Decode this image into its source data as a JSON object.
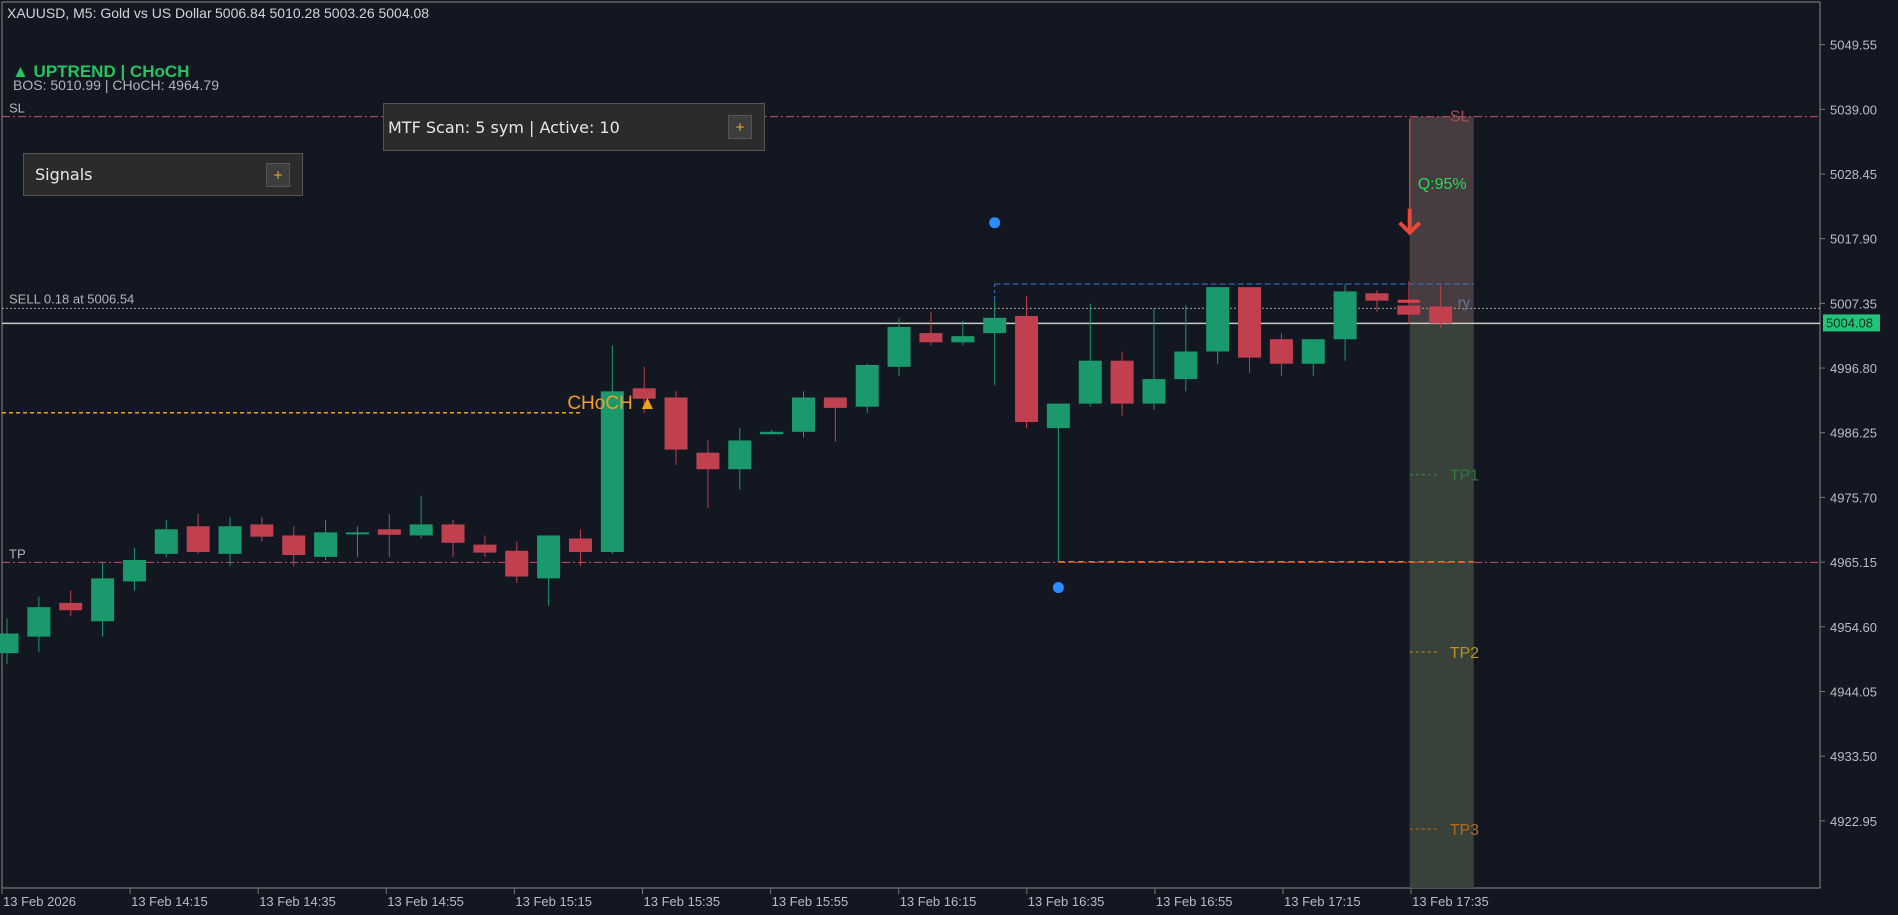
{
  "header": {
    "symbol_line": "XAUUSD, M5:  Gold vs US Dollar",
    "ohlc": "5006.84 5010.28 5003.26 5004.08"
  },
  "status": {
    "trend": "▲ UPTREND | CHoCH",
    "levels": "BOS: 5010.99  |  CHoCH: 4964.79"
  },
  "panels": {
    "mtf": {
      "label": "MTF Scan: 5 sym | Active: 10",
      "button": "+"
    },
    "signals": {
      "label": "Signals",
      "button": "+"
    }
  },
  "line_labels": {
    "sl_left": "SL",
    "tp_left": "TP",
    "sell": "SELL 0.18 at 5006.54",
    "sl_zone": "SL",
    "tp1": "TP1",
    "tp2": "TP2",
    "tp3": "TP3",
    "entry_partial": "ry",
    "quality": "Q:95%",
    "choch_marker": "CHoCH ▲"
  },
  "colors": {
    "background": "#131722",
    "bull": "#1a9a6c",
    "bear": "#c0404f",
    "sl_line": "#d0506a",
    "tp_line": "#d0506a",
    "choch": "#f0a020",
    "current_price_tag": "#22c47a",
    "swing_dot": "#2a8cff",
    "uptrend_text": "#22c55e",
    "quality_text": "#22dd55"
  },
  "current_price": "5004.08",
  "chart_data": {
    "type": "candlestick",
    "ylim": [
      4912.0,
      5056.5
    ],
    "y_ticks": [
      "5049.55",
      "5039.00",
      "5028.45",
      "5017.90",
      "5007.35",
      "4996.80",
      "4986.25",
      "4975.70",
      "4965.15",
      "4954.60",
      "4944.05",
      "4933.50",
      "4922.95"
    ],
    "x_ticks": [
      "13 Feb 2026",
      "13 Feb 14:15",
      "13 Feb 14:35",
      "13 Feb 14:55",
      "13 Feb 15:15",
      "13 Feb 15:35",
      "13 Feb 15:55",
      "13 Feb 16:15",
      "13 Feb 16:35",
      "13 Feb 16:55",
      "13 Feb 17:15",
      "13 Feb 17:35"
    ],
    "levels": {
      "sl": 5037.8,
      "tp": 4965.1,
      "sell_entry": 5006.54,
      "current": 5004.08,
      "choch": 4989.5,
      "tp1": 4979.4,
      "tp2": 4950.5,
      "tp3": 4921.6
    },
    "candles": [
      {
        "o": 4950.3,
        "h": 4956.0,
        "l": 4948.5,
        "c": 4953.5
      },
      {
        "o": 4953.0,
        "h": 4959.5,
        "l": 4950.5,
        "c": 4957.8
      },
      {
        "o": 4958.5,
        "h": 4960.5,
        "l": 4956.3,
        "c": 4957.3
      },
      {
        "o": 4955.5,
        "h": 4965.0,
        "l": 4953.0,
        "c": 4962.5
      },
      {
        "o": 4962.0,
        "h": 4967.5,
        "l": 4960.5,
        "c": 4965.5
      },
      {
        "o": 4966.5,
        "h": 4972.0,
        "l": 4966.0,
        "c": 4970.5
      },
      {
        "o": 4971.0,
        "h": 4973.0,
        "l": 4966.5,
        "c": 4966.8
      },
      {
        "o": 4966.5,
        "h": 4972.5,
        "l": 4964.5,
        "c": 4971.0
      },
      {
        "o": 4971.3,
        "h": 4972.5,
        "l": 4968.5,
        "c": 4969.3
      },
      {
        "o": 4969.5,
        "h": 4971.0,
        "l": 4964.5,
        "c": 4966.3
      },
      {
        "o": 4966.0,
        "h": 4972.0,
        "l": 4965.5,
        "c": 4970.0
      },
      {
        "o": 4969.7,
        "h": 4971.0,
        "l": 4966.0,
        "c": 4970.0
      },
      {
        "o": 4970.5,
        "h": 4973.0,
        "l": 4966.0,
        "c": 4969.6
      },
      {
        "o": 4969.5,
        "h": 4976.0,
        "l": 4969.0,
        "c": 4971.3
      },
      {
        "o": 4971.3,
        "h": 4972.0,
        "l": 4966.0,
        "c": 4968.3
      },
      {
        "o": 4968.0,
        "h": 4969.5,
        "l": 4966.0,
        "c": 4966.7
      },
      {
        "o": 4967.0,
        "h": 4968.5,
        "l": 4961.8,
        "c": 4962.8
      },
      {
        "o": 4962.5,
        "h": 4969.0,
        "l": 4958.0,
        "c": 4969.5
      },
      {
        "o": 4969.0,
        "h": 4970.5,
        "l": 4964.5,
        "c": 4966.8
      },
      {
        "o": 4966.8,
        "h": 5000.5,
        "l": 4966.5,
        "c": 4993.0
      },
      {
        "o": 4993.5,
        "h": 4997.0,
        "l": 4989.5,
        "c": 4991.8
      },
      {
        "o": 4992.0,
        "h": 4993.0,
        "l": 4981.0,
        "c": 4983.5
      },
      {
        "o": 4983.0,
        "h": 4985.0,
        "l": 4974.0,
        "c": 4980.3
      },
      {
        "o": 4980.3,
        "h": 4987.0,
        "l": 4977.0,
        "c": 4985.0
      },
      {
        "o": 4986.0,
        "h": 4986.7,
        "l": 4986.0,
        "c": 4986.4
      },
      {
        "o": 4986.4,
        "h": 4993.0,
        "l": 4985.5,
        "c": 4992.0
      },
      {
        "o": 4992.0,
        "h": 4992.0,
        "l": 4984.8,
        "c": 4990.3
      },
      {
        "o": 4990.5,
        "h": 4997.5,
        "l": 4989.5,
        "c": 4997.3
      },
      {
        "o": 4997.0,
        "h": 5005.0,
        "l": 4995.5,
        "c": 5003.5
      },
      {
        "o": 5002.5,
        "h": 5006.0,
        "l": 5000.5,
        "c": 5001.0
      },
      {
        "o": 5001.0,
        "h": 5004.5,
        "l": 5000.5,
        "c": 5002.0
      },
      {
        "o": 5002.5,
        "h": 5008.0,
        "l": 4994.0,
        "c": 5005.0
      },
      {
        "o": 5005.3,
        "h": 5008.5,
        "l": 4987.0,
        "c": 4988.0
      },
      {
        "o": 4987.0,
        "h": 4990.5,
        "l": 4965.2,
        "c": 4991.0
      },
      {
        "o": 4991.0,
        "h": 5007.3,
        "l": 4990.5,
        "c": 4998.0
      },
      {
        "o": 4998.0,
        "h": 4999.5,
        "l": 4989.0,
        "c": 4991.0
      },
      {
        "o": 4991.0,
        "h": 5006.5,
        "l": 4990.0,
        "c": 4995.0
      },
      {
        "o": 4995.0,
        "h": 5007.0,
        "l": 4993.0,
        "c": 4999.5
      },
      {
        "o": 4999.5,
        "h": 5010.0,
        "l": 4997.5,
        "c": 5010.0
      },
      {
        "o": 5010.0,
        "h": 5010.0,
        "l": 4996.0,
        "c": 4998.5
      },
      {
        "o": 5001.5,
        "h": 5002.5,
        "l": 4995.5,
        "c": 4997.5
      },
      {
        "o": 4997.5,
        "h": 5001.5,
        "l": 4995.5,
        "c": 5001.5
      },
      {
        "o": 5001.5,
        "h": 5010.5,
        "l": 4998.0,
        "c": 5009.3
      },
      {
        "o": 5009.0,
        "h": 5009.5,
        "l": 5006.0,
        "c": 5007.8
      },
      {
        "o": 5007.0,
        "h": 5011.0,
        "l": 5004.0,
        "c": 5005.5
      },
      {
        "o": 5006.84,
        "h": 5010.28,
        "l": 5003.26,
        "c": 5004.08
      }
    ]
  }
}
